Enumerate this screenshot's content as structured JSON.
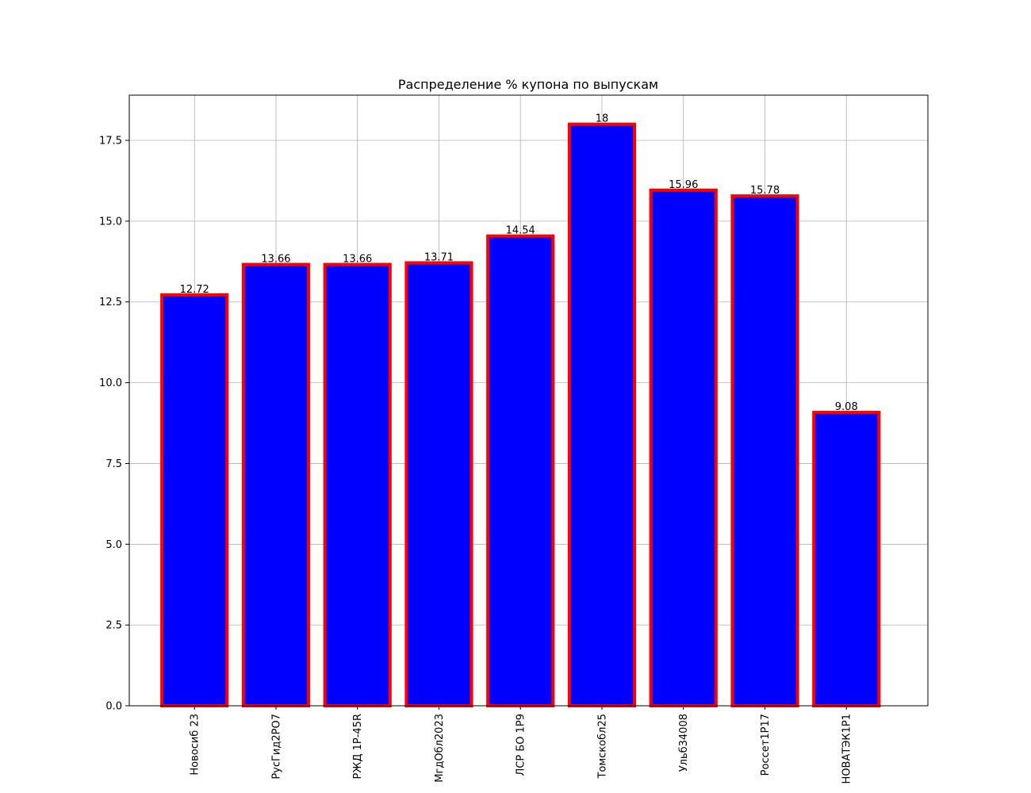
{
  "chart_data": {
    "type": "bar",
    "title": "Распределение % купона по выпускам",
    "xlabel": "",
    "ylabel": "",
    "categories": [
      "Новосиб 23",
      "РусГид2РО7",
      "РЖД 1Р-45R",
      "МгдОбл2023",
      "ЛСР БО 1Р9",
      "Томскобл25",
      "Ульб34008",
      "Россет1Р17",
      "НОВАТЭК1Р1"
    ],
    "values": [
      12.72,
      13.66,
      13.66,
      13.71,
      14.54,
      18,
      15.96,
      15.78,
      9.08
    ],
    "value_labels": [
      "12.72",
      "13.66",
      "13.66",
      "13.71",
      "14.54",
      "18",
      "15.96",
      "15.78",
      "9.08"
    ],
    "ylim": [
      0,
      18.9
    ],
    "yticks": [
      0,
      2.5,
      5,
      7.5,
      10,
      12.5,
      15,
      17.5
    ],
    "ytick_labels": [
      "0.0",
      "2.5",
      "5.0",
      "7.5",
      "10.0",
      "12.5",
      "15.0",
      "17.5"
    ],
    "grid": true,
    "bar_color": "#0000ff",
    "edge_color": "#ff0000",
    "grid_color": "#b0b0b0"
  }
}
